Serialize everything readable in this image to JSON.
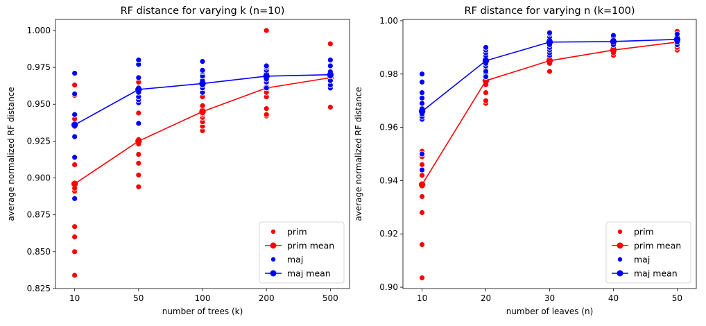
{
  "chart_data": [
    {
      "type": "scatter",
      "title": "RF distance for varying k (n=10)",
      "xlabel": "number of trees (k)",
      "ylabel": "average normalized RF distance",
      "categories": [
        "10",
        "50",
        "100",
        "200",
        "500"
      ],
      "ylim": [
        0.825,
        1.0075
      ],
      "yticks": [
        "0.825",
        "0.850",
        "0.875",
        "0.900",
        "0.925",
        "0.950",
        "0.975",
        "1.000"
      ],
      "legend_position": "lower-right",
      "legend": [
        "prim",
        "prim mean",
        "maj",
        "maj mean"
      ],
      "series": [
        {
          "name": "prim",
          "kind": "points",
          "color": "#ff0000",
          "points": [
            [
              0,
              0.834
            ],
            [
              0,
              0.85
            ],
            [
              0,
              0.86
            ],
            [
              0,
              0.867
            ],
            [
              0,
              0.891
            ],
            [
              0,
              0.893
            ],
            [
              0,
              0.896
            ],
            [
              0,
              0.909
            ],
            [
              0,
              0.935
            ],
            [
              0,
              0.94
            ],
            [
              0,
              0.956
            ],
            [
              0,
              0.963
            ],
            [
              1,
              0.894
            ],
            [
              1,
              0.902
            ],
            [
              1,
              0.91
            ],
            [
              1,
              0.916
            ],
            [
              1,
              0.923
            ],
            [
              1,
              0.926
            ],
            [
              1,
              0.944
            ],
            [
              1,
              0.955
            ],
            [
              1,
              0.958
            ],
            [
              1,
              0.965
            ],
            [
              2,
              0.932
            ],
            [
              2,
              0.935
            ],
            [
              2,
              0.938
            ],
            [
              2,
              0.941
            ],
            [
              2,
              0.943
            ],
            [
              2,
              0.944
            ],
            [
              2,
              0.946
            ],
            [
              2,
              0.949
            ],
            [
              2,
              0.955
            ],
            [
              2,
              0.962
            ],
            [
              3,
              0.942
            ],
            [
              3,
              0.943
            ],
            [
              3,
              0.947
            ],
            [
              3,
              0.955
            ],
            [
              3,
              0.958
            ],
            [
              3,
              0.962
            ],
            [
              3,
              0.965
            ],
            [
              3,
              0.971
            ],
            [
              3,
              1.0
            ],
            [
              4,
              0.948
            ],
            [
              4,
              0.962
            ],
            [
              4,
              0.966
            ],
            [
              4,
              0.968
            ],
            [
              4,
              0.97
            ],
            [
              4,
              0.991
            ]
          ]
        },
        {
          "name": "prim mean",
          "kind": "line",
          "color": "#ff0000",
          "points": [
            [
              0,
              0.896
            ],
            [
              1,
              0.925
            ],
            [
              2,
              0.945
            ],
            [
              3,
              0.961
            ],
            [
              4,
              0.968
            ]
          ]
        },
        {
          "name": "maj",
          "kind": "points",
          "color": "#0000ff",
          "points": [
            [
              0,
              0.886
            ],
            [
              0,
              0.914
            ],
            [
              0,
              0.928
            ],
            [
              0,
              0.936
            ],
            [
              0,
              0.943
            ],
            [
              0,
              0.957
            ],
            [
              0,
              0.971
            ],
            [
              1,
              0.937
            ],
            [
              1,
              0.951
            ],
            [
              1,
              0.953
            ],
            [
              1,
              0.955
            ],
            [
              1,
              0.958
            ],
            [
              1,
              0.961
            ],
            [
              1,
              0.968
            ],
            [
              1,
              0.977
            ],
            [
              1,
              0.98
            ],
            [
              2,
              0.958
            ],
            [
              2,
              0.961
            ],
            [
              2,
              0.963
            ],
            [
              2,
              0.966
            ],
            [
              2,
              0.969
            ],
            [
              2,
              0.972
            ],
            [
              2,
              0.973
            ],
            [
              2,
              0.979
            ],
            [
              3,
              0.961
            ],
            [
              3,
              0.965
            ],
            [
              3,
              0.967
            ],
            [
              3,
              0.969
            ],
            [
              3,
              0.971
            ],
            [
              3,
              0.973
            ],
            [
              3,
              0.975
            ],
            [
              3,
              0.976
            ],
            [
              4,
              0.961
            ],
            [
              4,
              0.963
            ],
            [
              4,
              0.966
            ],
            [
              4,
              0.969
            ],
            [
              4,
              0.972
            ],
            [
              4,
              0.976
            ],
            [
              4,
              0.98
            ]
          ]
        },
        {
          "name": "maj mean",
          "kind": "line",
          "color": "#0000ff",
          "points": [
            [
              0,
              0.936
            ],
            [
              1,
              0.96
            ],
            [
              2,
              0.964
            ],
            [
              3,
              0.969
            ],
            [
              4,
              0.97
            ]
          ]
        }
      ]
    },
    {
      "type": "scatter",
      "title": "RF distance for varying n (k=100)",
      "xlabel": "number of leaves (n)",
      "ylabel": "average normalized RF distance",
      "categories": [
        "10",
        "20",
        "30",
        "40",
        "50"
      ],
      "ylim": [
        0.8995,
        1.0005
      ],
      "yticks": [
        "0.90",
        "0.92",
        "0.94",
        "0.96",
        "0.98",
        "1.00"
      ],
      "legend_position": "lower-right",
      "legend": [
        "prim",
        "prim mean",
        "maj",
        "maj mean"
      ],
      "series": [
        {
          "name": "prim",
          "kind": "points",
          "color": "#ff0000",
          "points": [
            [
              0,
              0.9035
            ],
            [
              0,
              0.916
            ],
            [
              0,
              0.928
            ],
            [
              0,
              0.934
            ],
            [
              0,
              0.938
            ],
            [
              0,
              0.942
            ],
            [
              0,
              0.944
            ],
            [
              0,
              0.946
            ],
            [
              0,
              0.949
            ],
            [
              0,
              0.951
            ],
            [
              1,
              0.969
            ],
            [
              1,
              0.97
            ],
            [
              1,
              0.973
            ],
            [
              1,
              0.976
            ],
            [
              1,
              0.978
            ],
            [
              1,
              0.98
            ],
            [
              1,
              0.982
            ],
            [
              1,
              0.984
            ],
            [
              2,
              0.981
            ],
            [
              2,
              0.984
            ],
            [
              2,
              0.985
            ],
            [
              2,
              0.986
            ],
            [
              2,
              0.987
            ],
            [
              3,
              0.987
            ],
            [
              3,
              0.988
            ],
            [
              3,
              0.989
            ],
            [
              3,
              0.99
            ],
            [
              4,
              0.989
            ],
            [
              4,
              0.99
            ],
            [
              4,
              0.991
            ],
            [
              4,
              0.992
            ],
            [
              4,
              0.993
            ],
            [
              4,
              0.994
            ],
            [
              4,
              0.995
            ],
            [
              4,
              0.996
            ]
          ]
        },
        {
          "name": "prim mean",
          "kind": "line",
          "color": "#ff0000",
          "points": [
            [
              0,
              0.9385
            ],
            [
              1,
              0.9775
            ],
            [
              2,
              0.985
            ],
            [
              3,
              0.989
            ],
            [
              4,
              0.992
            ]
          ]
        },
        {
          "name": "maj",
          "kind": "points",
          "color": "#0000ff",
          "points": [
            [
              0,
              0.944
            ],
            [
              0,
              0.95
            ],
            [
              0,
              0.963
            ],
            [
              0,
              0.964
            ],
            [
              0,
              0.965
            ],
            [
              0,
              0.966
            ],
            [
              0,
              0.967
            ],
            [
              0,
              0.969
            ],
            [
              0,
              0.971
            ],
            [
              0,
              0.973
            ],
            [
              0,
              0.977
            ],
            [
              0,
              0.98
            ],
            [
              1,
              0.979
            ],
            [
              1,
              0.981
            ],
            [
              1,
              0.983
            ],
            [
              1,
              0.984
            ],
            [
              1,
              0.985
            ],
            [
              1,
              0.986
            ],
            [
              1,
              0.987
            ],
            [
              1,
              0.988
            ],
            [
              1,
              0.989
            ],
            [
              1,
              0.99
            ],
            [
              2,
              0.987
            ],
            [
              2,
              0.988
            ],
            [
              2,
              0.989
            ],
            [
              2,
              0.99
            ],
            [
              2,
              0.991
            ],
            [
              2,
              0.992
            ],
            [
              2,
              0.993
            ],
            [
              2,
              0.994
            ],
            [
              2,
              0.995
            ],
            [
              2,
              0.9955
            ],
            [
              3,
              0.991
            ],
            [
              3,
              0.992
            ],
            [
              3,
              0.993
            ],
            [
              3,
              0.994
            ],
            [
              3,
              0.9945
            ],
            [
              4,
              0.991
            ],
            [
              4,
              0.992
            ],
            [
              4,
              0.993
            ],
            [
              4,
              0.994
            ],
            [
              4,
              0.995
            ]
          ]
        },
        {
          "name": "maj mean",
          "kind": "line",
          "color": "#0000ff",
          "points": [
            [
              0,
              0.966
            ],
            [
              1,
              0.985
            ],
            [
              2,
              0.992
            ],
            [
              3,
              0.9922
            ],
            [
              4,
              0.993
            ]
          ]
        }
      ]
    }
  ]
}
